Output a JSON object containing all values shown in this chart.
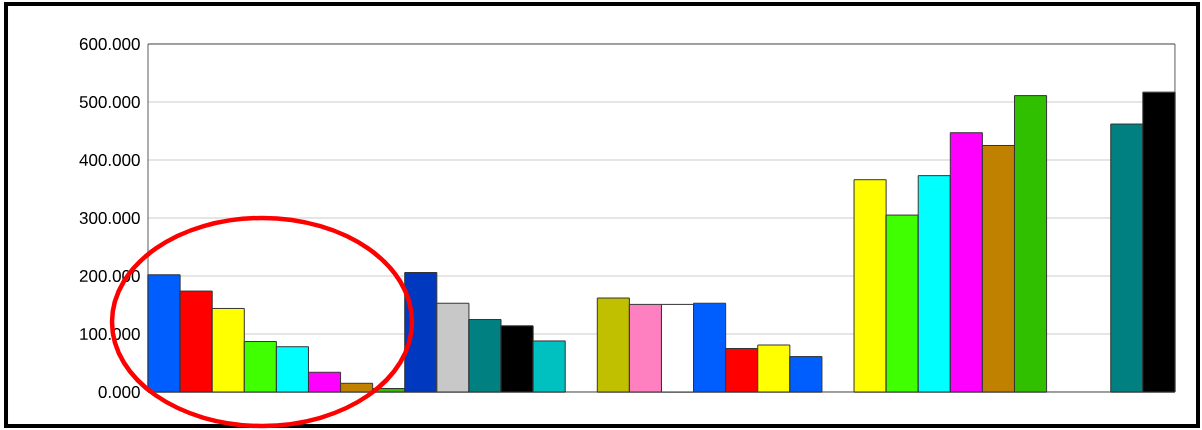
{
  "chart_data": {
    "type": "bar",
    "categories": [
      null,
      null,
      null,
      null,
      null,
      null,
      null,
      null,
      null,
      null,
      null,
      null,
      null,
      null,
      null,
      null,
      null,
      null,
      null,
      null,
      null,
      null,
      null,
      null,
      null,
      null,
      null,
      null,
      null,
      null,
      null,
      null
    ],
    "values": [
      202,
      174,
      144,
      87,
      78,
      34,
      15,
      6,
      206,
      153,
      125,
      114,
      88,
      null,
      162,
      151,
      151,
      153,
      75,
      81,
      61,
      null,
      366,
      305,
      373,
      447,
      425,
      511,
      null,
      null,
      462,
      517
    ],
    "colors": [
      "#005eff",
      "#ff0000",
      "#ffff00",
      "#40ff00",
      "#00ffff",
      "#ff00ff",
      "#c08000",
      "#30c000",
      "#0038c0",
      "#c8c8c8",
      "#008080",
      "#000000",
      "#00c0c0",
      null,
      "#c0c000",
      "#ff80c0",
      "#ffffff",
      "#005eff",
      "#ff0000",
      "#ffff00",
      "#005eff",
      null,
      "#ffff00",
      "#40ff00",
      "#00ffff",
      "#ff00ff",
      "#c08000",
      "#30c000",
      null,
      null,
      "#008080",
      "#000000"
    ],
    "ylim": [
      0,
      600
    ],
    "yticks": [
      {
        "value": 0,
        "label": "0.000"
      },
      {
        "value": 100,
        "label": "100.000"
      },
      {
        "value": 200,
        "label": "200.000"
      },
      {
        "value": 300,
        "label": "300.000"
      },
      {
        "value": 400,
        "label": "400.000"
      },
      {
        "value": 500,
        "label": "500.000"
      },
      {
        "value": 600,
        "label": "600.000"
      }
    ],
    "grid": "y"
  }
}
